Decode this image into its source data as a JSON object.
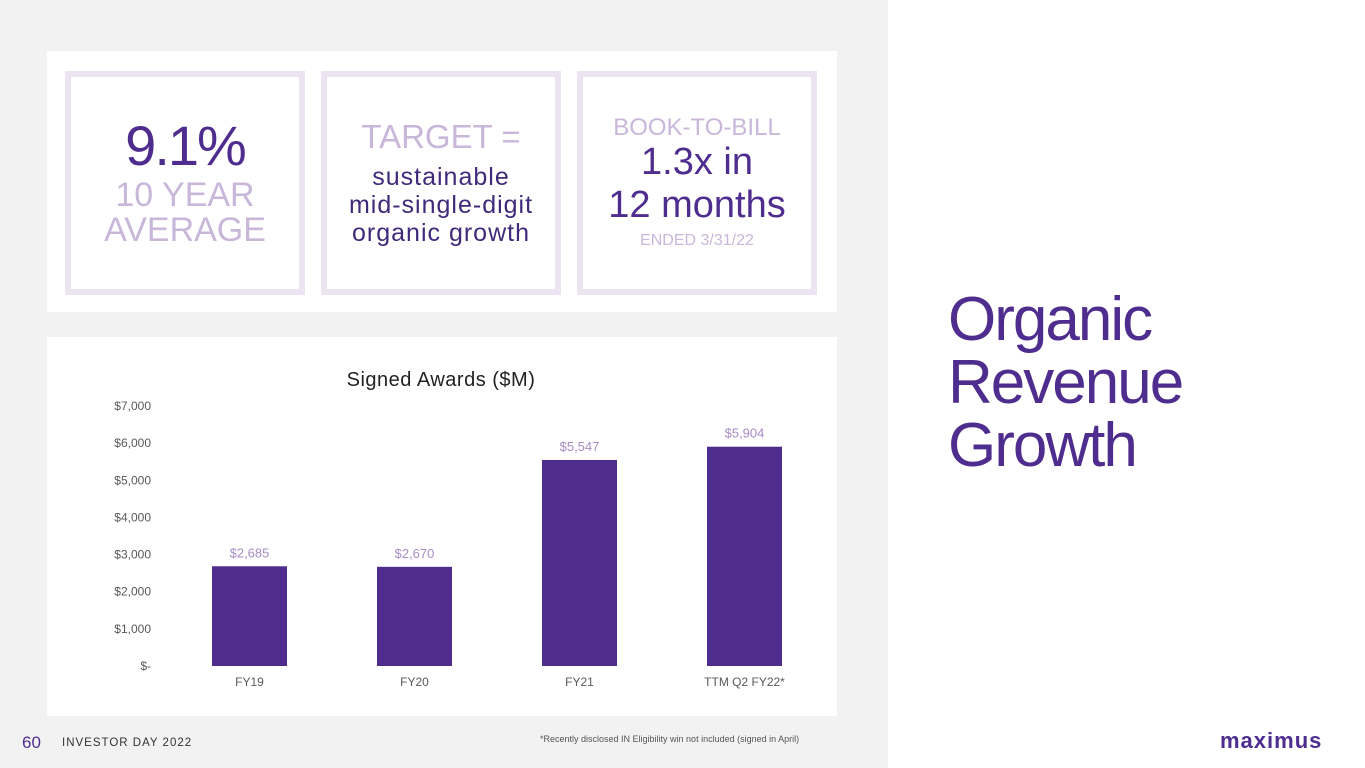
{
  "kpis": [
    {
      "value": "9.1%",
      "lines": [
        "10 YEAR",
        "AVERAGE"
      ]
    },
    {
      "heading": "TARGET =",
      "lines": [
        "sustainable",
        "mid-single-digit",
        "organic growth"
      ]
    },
    {
      "heading": "BOOK-TO-BILL",
      "value_lines": [
        "1.3x in",
        "12 months"
      ],
      "footer": "ENDED 3/31/22"
    }
  ],
  "page_title": [
    "Organic",
    "Revenue",
    "Growth"
  ],
  "footer": {
    "page_number": "60",
    "label": "INVESTOR DAY 2022",
    "footnote": "*Recently disclosed IN Eligibility win not included (signed in April)",
    "logo": "maximus"
  },
  "colors": {
    "accent": "#4f2d8f",
    "lavender": "#c9b7da",
    "data_label": "#a68cc4"
  },
  "chart_data": {
    "type": "bar",
    "title": "Signed Awards ($M)",
    "categories": [
      "FY19",
      "FY20",
      "FY21",
      "TTM Q2 FY22*"
    ],
    "values": [
      2685,
      2670,
      5547,
      5904
    ],
    "data_labels": [
      "$2,685",
      "$2,670",
      "$5,547",
      "$5,904"
    ],
    "ylim": [
      0,
      7000
    ],
    "y_ticks": [
      0,
      1000,
      2000,
      3000,
      4000,
      5000,
      6000,
      7000
    ],
    "y_tick_labels": [
      "$-",
      "$1,000",
      "$2,000",
      "$3,000",
      "$4,000",
      "$5,000",
      "$6,000",
      "$7,000"
    ],
    "grid": false,
    "xlabel": "",
    "ylabel": ""
  }
}
